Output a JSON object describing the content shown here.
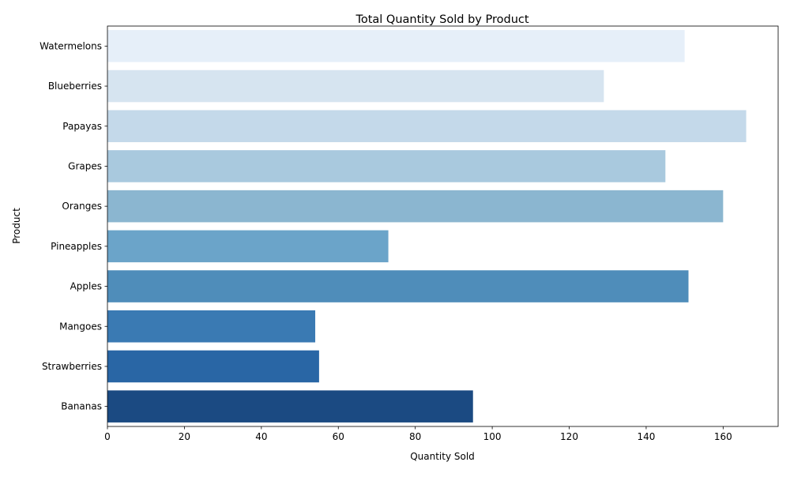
{
  "chart_data": {
    "type": "bar",
    "orientation": "horizontal",
    "title": "Total Quantity Sold by Product",
    "xlabel": "Quantity Sold",
    "ylabel": "Product",
    "categories": [
      "Watermelons",
      "Blueberries",
      "Papayas",
      "Grapes",
      "Oranges",
      "Pineapples",
      "Apples",
      "Mangoes",
      "Strawberries",
      "Bananas"
    ],
    "values": [
      150,
      129,
      166,
      145,
      160,
      73,
      151,
      54,
      55,
      95
    ],
    "xlim": [
      0,
      174.3
    ],
    "xticks": [
      0,
      20,
      40,
      60,
      80,
      100,
      120,
      140,
      160
    ],
    "grid": false,
    "legend": "none",
    "colors": [
      "#e6eff9",
      "#d6e4f0",
      "#c4d9ea",
      "#a9c9de",
      "#8bb6d0",
      "#6ba4c9",
      "#4f8dba",
      "#3a7ab3",
      "#2966a5",
      "#1b4a82"
    ]
  }
}
